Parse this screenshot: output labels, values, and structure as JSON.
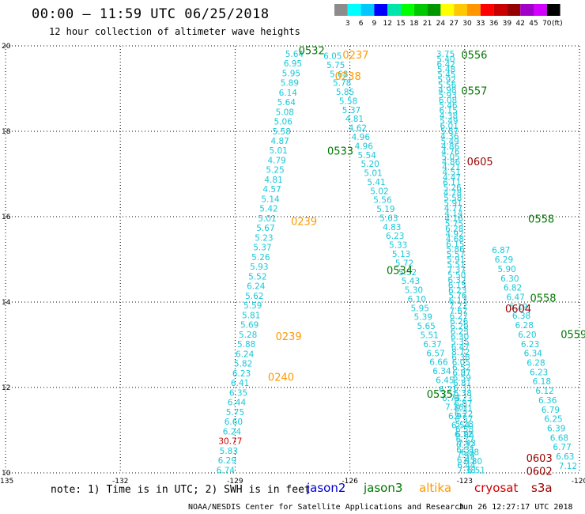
{
  "header": {
    "title": "00:00 – 11:59 UTC 06/25/2018",
    "subtitle": "12 hour collection of altimeter wave heights"
  },
  "colorbar": {
    "labels": [
      "3",
      "6",
      "9",
      "12",
      "15",
      "18",
      "21",
      "24",
      "27",
      "30",
      "33",
      "36",
      "39",
      "42",
      "45",
      "70"
    ],
    "unit": "(ft)",
    "colors": [
      "#8c8c8c",
      "#00ffff",
      "#00c8ff",
      "#0000ff",
      "#00e6aa",
      "#00ff00",
      "#00c800",
      "#009600",
      "#ffff00",
      "#ffc800",
      "#ff9600",
      "#ff0000",
      "#c80000",
      "#960000",
      "#a000c8",
      "#d200ff",
      "#000000"
    ]
  },
  "map": {
    "lon_ticks": [
      "-135",
      "-132",
      "-129",
      "-126",
      "-123",
      "-120"
    ],
    "lat_ticks": [
      "10",
      "12",
      "14",
      "16",
      "18",
      "20"
    ],
    "lon_range": [
      -135,
      -120
    ],
    "lat_range": [
      10,
      20
    ]
  },
  "satellites": {
    "jason2": {
      "name": "jason2",
      "color": "#0000cc"
    },
    "jason3": {
      "name": "jason3",
      "color": "#007700"
    },
    "altika": {
      "name": "altika",
      "color": "#ff9900"
    },
    "cryosat": {
      "name": "cryosat",
      "color": "#cc0000"
    },
    "s3a": {
      "name": "s3a",
      "color": "#990000"
    }
  },
  "passes": [
    {
      "label": "0532",
      "sat": "jason3",
      "lon": -127.0,
      "lat": 19.9
    },
    {
      "label": "0237",
      "sat": "altika",
      "lon": -125.85,
      "lat": 19.8
    },
    {
      "label": "0238",
      "sat": "altika",
      "lon": -126.05,
      "lat": 19.3
    },
    {
      "label": "0533",
      "sat": "jason3",
      "lon": -126.25,
      "lat": 17.55
    },
    {
      "label": "0239",
      "sat": "altika",
      "lon": -127.2,
      "lat": 15.9
    },
    {
      "label": "0534",
      "sat": "jason3",
      "lon": -124.7,
      "lat": 14.75
    },
    {
      "label": "0239",
      "sat": "altika",
      "lon": -127.6,
      "lat": 13.2
    },
    {
      "label": "0240",
      "sat": "altika",
      "lon": -127.8,
      "lat": 12.25
    },
    {
      "label": "0535",
      "sat": "jason3",
      "lon": -123.65,
      "lat": 11.85
    },
    {
      "label": "0556",
      "sat": "jason3",
      "lon": -122.75,
      "lat": 19.8
    },
    {
      "label": "0557",
      "sat": "jason3",
      "lon": -122.75,
      "lat": 18.95
    },
    {
      "label": "0605",
      "sat": "s3a",
      "lon": -122.6,
      "lat": 17.3
    },
    {
      "label": "0558",
      "sat": "jason3",
      "lon": -121.0,
      "lat": 15.95
    },
    {
      "label": "0604",
      "sat": "s3a",
      "lon": -121.6,
      "lat": 13.85
    },
    {
      "label": "0558",
      "sat": "jason3",
      "lon": -120.95,
      "lat": 14.1
    },
    {
      "label": "0559",
      "sat": "jason3",
      "lon": -120.15,
      "lat": 13.25
    },
    {
      "label": "0603",
      "sat": "s3a",
      "lon": -121.05,
      "lat": 10.35
    },
    {
      "label": "0602",
      "sat": "s3a",
      "lon": -121.05,
      "lat": 10.05
    }
  ],
  "tracks": [
    {
      "sat": "jason3",
      "from": [
        -127.45,
        19.8
      ],
      "to": [
        -129.25,
        10.05
      ],
      "values": [
        "5.64",
        "6.95",
        "5.95",
        "5.89",
        "6.14",
        "5.64",
        "5.08",
        "5.06",
        "5.58",
        "4.87",
        "5.01",
        "4.79",
        "5.25",
        "4.81",
        "4.57",
        "5.14",
        "5.42",
        "5.01",
        "5.67",
        "5.23",
        "5.37",
        "5.26",
        "5.93",
        "5.52",
        "6.24",
        "5.62",
        "5.59",
        "5.81",
        "5.69",
        "5.28",
        "5.88",
        "6.24",
        "5.82",
        "6.23",
        "6.41",
        "6.35",
        "6.44",
        "5.75",
        "6.60",
        "6.24",
        "30.77",
        "5.83",
        "6.29",
        "6.74"
      ],
      "highlight": {
        "30.77": "#cc0000"
      }
    },
    {
      "sat": "jason3",
      "from": [
        -126.45,
        19.75
      ],
      "to": [
        -122.7,
        10.05
      ],
      "values": [
        "6.05",
        "5.75",
        "5.68",
        "5.78",
        "5.85",
        "5.58",
        "5.37",
        "4.81",
        "4.62",
        "4.96",
        "4.96",
        "5.54",
        "5.20",
        "5.01",
        "5.41",
        "5.02",
        "5.56",
        "5.19",
        "5.63",
        "4.83",
        "6.23",
        "5.33",
        "5.13",
        "5.72",
        "5.52",
        "5.43",
        "5.30",
        "6.10",
        "5.95",
        "5.39",
        "5.65",
        "5.51",
        "6.37",
        "6.57",
        "6.66",
        "6.34",
        "6.45",
        "6.21",
        "6.74",
        "7.36",
        "6.97",
        "6.54",
        "6.72",
        "7.43",
        "6.88",
        "6.80",
        "6.51"
      ]
    },
    {
      "sat": "jason3",
      "from": [
        -123.5,
        19.8
      ],
      "to": [
        -122.95,
        10.05
      ],
      "values": [
        "3.75",
        "5.40",
        "6.42",
        "5.48",
        "5.45",
        "5.92",
        "5.56",
        "4.98",
        "5.93",
        "6.08",
        "5.46",
        "6.15",
        "4.38",
        "5.49",
        "6.01",
        "5.87",
        "4.36",
        "5.49",
        "4.86",
        "4.76",
        "5.05",
        "4.86",
        "4.21",
        "4.51",
        "4.47",
        "6.11",
        "5.26",
        "4.78",
        "5.58",
        "5.91",
        "4.77",
        "4.14",
        "4.16",
        "5.75",
        "6.28",
        "4.92",
        "4.68",
        "6.15",
        "5.86",
        "5.57",
        "5.91",
        "5.51",
        "7.37",
        "5.50",
        "6.32",
        "6.15",
        "6.23",
        "5.76",
        "6.13",
        "7.22",
        "7.67",
        "6.27",
        "6.26",
        "6.29",
        "6.23",
        "6.30",
        "5.35",
        "6.47",
        "8.72",
        "6.38",
        "6.05",
        "6.52",
        "6.87",
        "6.59",
        "6.81",
        "6.31",
        "6.38",
        "6.23",
        "6.87",
        "6.31",
        "6.22",
        "6.57",
        "5.28",
        "6.58",
        "6.98",
        "6.77",
        "6.32",
        "6.31",
        "7.44",
        "6.45",
        "6.44",
        "7.38"
      ]
    },
    {
      "sat": "jason3",
      "from": [
        -122.05,
        15.2
      ],
      "to": [
        -120.3,
        10.15
      ],
      "values": [
        "6.87",
        "6.29",
        "5.90",
        "6.30",
        "6.82",
        "6.47",
        "6.19",
        "6.38",
        "6.28",
        "6.20",
        "6.23",
        "6.34",
        "6.28",
        "6.23",
        "6.18",
        "6.12",
        "6.36",
        "6.79",
        "6.25",
        "6.39",
        "6.68",
        "6.77",
        "6.63",
        "7.12"
      ]
    }
  ],
  "footer": {
    "note": "note: 1) Time is in UTC; 2) SWH is in feet",
    "credit": "NOAA/NESDIS Center for Satellite Applications and Research",
    "timestamp": "Jun 26 12:27:17 UTC 2018"
  }
}
